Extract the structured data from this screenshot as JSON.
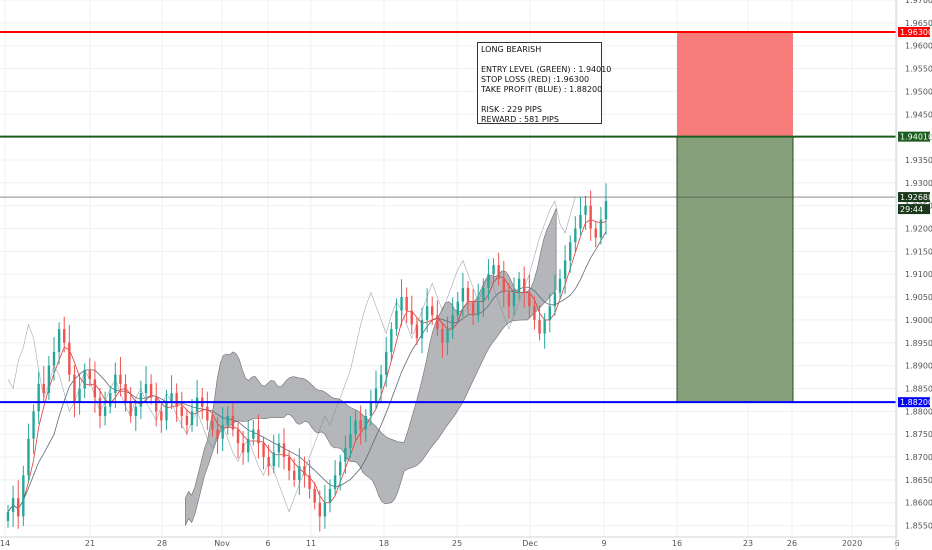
{
  "chart_data": {
    "type": "candlestick",
    "ylim": [
      1.8525,
      1.97
    ],
    "y_ticks": [
      "1.85500",
      "1.86000",
      "1.86500",
      "1.87000",
      "1.87500",
      "1.88000",
      "1.88500",
      "1.89000",
      "1.89500",
      "1.90000",
      "1.90500",
      "1.91000",
      "1.91500",
      "1.92000",
      "1.92500",
      "1.93000",
      "1.93500",
      "1.94000",
      "1.94500",
      "1.95000",
      "1.95500",
      "1.96000",
      "1.96500",
      "1.97000"
    ],
    "x_ticks": [
      "14",
      "21",
      "28",
      "Nov",
      "6",
      "11",
      "18",
      "25",
      "Dec",
      "9",
      "16",
      "23",
      "26",
      "2020",
      "6"
    ],
    "price_labels": {
      "stop_loss": "1.96300",
      "entry": "1.94010",
      "current": "1.92688",
      "countdown": "29:44",
      "take_profit": "1.88200"
    },
    "levels": {
      "stop_loss": 1.963,
      "entry": 1.9401,
      "current": 1.92688,
      "take_profit": 1.882
    },
    "annotation": {
      "line1": "LONG BEARISH",
      "line2": "ENTRY LEVEL (GREEN) : 1.94010",
      "line3": "STOP LOSS (RED) :1.96300",
      "line4": "TAKE PROFIT (BLUE) : 1.88200",
      "line5": "RISK : 229 PIPS",
      "line6": "REWARD : 581 PIPS"
    },
    "colors": {
      "up": "#26a69a",
      "down": "#ef5350",
      "stop_loss_line": "#ff0000",
      "entry_line": "#1b5e20",
      "take_profit_line": "#0000ff",
      "risk_zone": "#f77b7b",
      "reward_zone": "#87a07c",
      "cloud_dark": "#a8aaad",
      "cloud_light": "#dcdee0"
    },
    "closes": [
      1.858,
      1.861,
      1.857,
      1.866,
      1.874,
      1.88,
      1.886,
      1.884,
      1.89,
      1.893,
      1.898,
      1.895,
      1.888,
      1.882,
      1.885,
      1.889,
      1.887,
      1.883,
      1.879,
      1.881,
      1.884,
      1.888,
      1.886,
      1.882,
      1.879,
      1.881,
      1.884,
      1.886,
      1.883,
      1.88,
      1.878,
      1.882,
      1.884,
      1.881,
      1.879,
      1.877,
      1.88,
      1.883,
      1.881,
      1.878,
      1.876,
      1.874,
      1.877,
      1.879,
      1.876,
      1.873,
      1.871,
      1.874,
      1.876,
      1.873,
      1.87,
      1.868,
      1.871,
      1.873,
      1.87,
      1.867,
      1.865,
      1.868,
      1.866,
      1.863,
      1.86,
      1.857,
      1.86,
      1.863,
      1.866,
      1.869,
      1.872,
      1.875,
      1.878,
      1.876,
      1.879,
      1.882,
      1.885,
      1.888,
      1.893,
      1.898,
      1.902,
      1.905,
      1.902,
      1.899,
      1.896,
      1.9,
      1.903,
      1.901,
      1.898,
      1.895,
      1.898,
      1.901,
      1.904,
      1.907,
      1.904,
      1.901,
      1.904,
      1.907,
      1.91,
      1.912,
      1.909,
      1.906,
      1.903,
      1.906,
      1.909,
      1.906,
      1.903,
      1.9,
      1.897,
      1.9,
      1.903,
      1.906,
      1.909,
      1.913,
      1.917,
      1.92,
      1.923,
      1.925,
      1.92,
      1.918,
      1.922,
      1.926
    ]
  }
}
